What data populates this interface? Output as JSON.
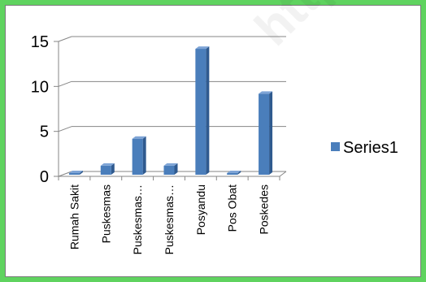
{
  "chart_data": {
    "type": "bar",
    "title": "",
    "xlabel": "",
    "ylabel": "",
    "categories": [
      "Rumah Sakit",
      "Puskesmas",
      "Puskesmas…",
      "Puskesmas…",
      "Posyandu",
      "Pos Obat",
      "Poskedes"
    ],
    "series": [
      {
        "name": "Series1",
        "values": [
          0,
          1,
          4,
          1,
          14,
          0,
          9
        ],
        "color": "#4a7ebb"
      }
    ],
    "ylim": [
      0,
      15
    ],
    "yticks": [
      0,
      5,
      10,
      15
    ],
    "grid": true,
    "legend": "right",
    "style": "3d-column"
  },
  "watermark": "http://bel"
}
